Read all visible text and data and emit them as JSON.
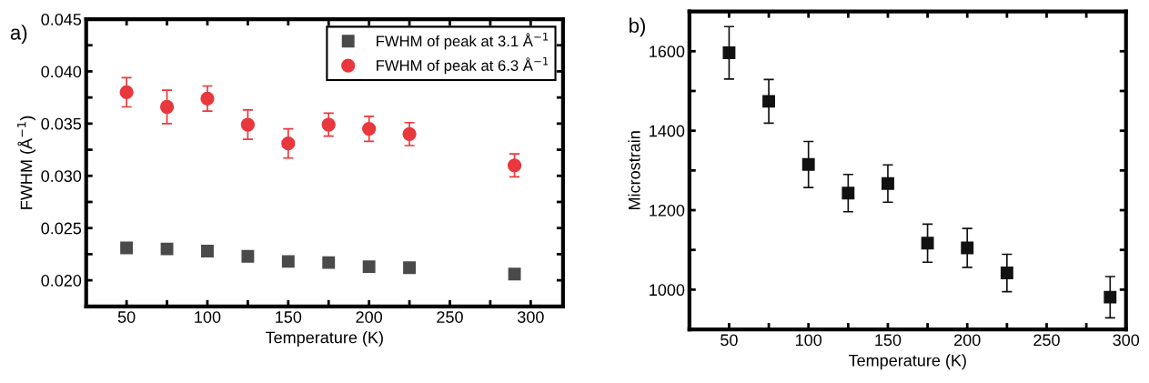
{
  "chart_data": [
    {
      "type": "scatter",
      "xlabel": "Temperature (K)",
      "ylabel": "FWHM (Å$^{−1}$)",
      "annotations": [
        "a)"
      ],
      "x": [
        50,
        75,
        100,
        125,
        150,
        175,
        200,
        225,
        290
      ],
      "xlim": [
        25,
        320
      ],
      "xticks": [
        50,
        {
          "value": 75,
          "label": null
        },
        100,
        {
          "value": 125,
          "label": null
        },
        150,
        {
          "value": 175,
          "label": null
        },
        200,
        {
          "value": 225,
          "label": null
        },
        250,
        {
          "value": 275,
          "label": null
        },
        300
      ],
      "ylim": [
        0.0175,
        0.045
      ],
      "yticks": [
        {
          "value": 0.02,
          "label": "0.020"
        },
        {
          "value": 0.0225,
          "label": null
        },
        {
          "value": 0.025,
          "label": "0.025"
        },
        {
          "value": 0.0275,
          "label": null
        },
        {
          "value": 0.03,
          "label": "0.030"
        },
        {
          "value": 0.0325,
          "label": null
        },
        {
          "value": 0.035,
          "label": "0.035"
        },
        {
          "value": 0.0375,
          "label": null
        },
        {
          "value": 0.04,
          "label": "0.040"
        },
        {
          "value": 0.0425,
          "label": null
        },
        {
          "value": 0.045,
          "label": "0.045"
        }
      ],
      "grid": false,
      "legend": "top right",
      "series": [
        {
          "name": "FWHM of peak at 3.1 Å$^{−1}$",
          "color": "#4a4a4a",
          "marker": "square",
          "values": [
            0.0231,
            0.023,
            0.0228,
            0.0223,
            0.0218,
            0.0217,
            0.0213,
            0.0212,
            0.0206
          ]
        },
        {
          "name": "FWHM of peak at 6.3 Å$^{−1}$",
          "color": "#e8383d",
          "marker": "circle",
          "values": [
            0.038,
            0.0366,
            0.0374,
            0.0349,
            0.0331,
            0.0349,
            0.0345,
            0.034,
            0.031
          ],
          "errors": [
            0.0014,
            0.0016,
            0.0012,
            0.0014,
            0.0014,
            0.0011,
            0.0012,
            0.0011,
            0.0011
          ]
        }
      ]
    },
    {
      "type": "scatter",
      "xlabel": "Temperature (K)",
      "ylabel": "Microstrain",
      "annotations": [
        "b)"
      ],
      "x": [
        50,
        75,
        100,
        125,
        150,
        175,
        200,
        225,
        290
      ],
      "xlim": [
        25,
        300
      ],
      "xticks": [
        50,
        {
          "value": 75,
          "label": null
        },
        100,
        {
          "value": 125,
          "label": null
        },
        150,
        {
          "value": 175,
          "label": null
        },
        200,
        {
          "value": 225,
          "label": null
        },
        250,
        {
          "value": 275,
          "label": null
        },
        300
      ],
      "ylim": [
        900,
        1700
      ],
      "yticks": [
        1000,
        {
          "value": 1100,
          "label": null
        },
        1200,
        {
          "value": 1300,
          "label": null
        },
        1400,
        {
          "value": 1500,
          "label": null
        },
        1600
      ],
      "grid": false,
      "legend": false,
      "series": [
        {
          "color": "#111111",
          "marker": "square",
          "values": [
            1596,
            1474,
            1315,
            1243,
            1267,
            1117,
            1105,
            1042,
            981
          ],
          "errors": [
            66,
            55,
            58,
            47,
            47,
            48,
            49,
            47,
            52
          ]
        }
      ]
    }
  ]
}
